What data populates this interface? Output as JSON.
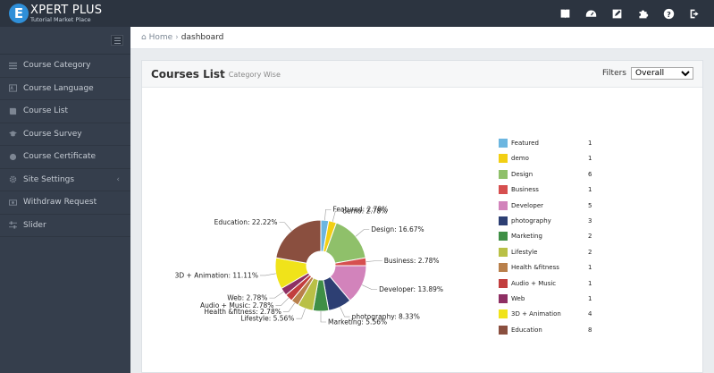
{
  "brand": {
    "mark": "E",
    "title": "XPERT PLUS",
    "subtitle": "Tutorial Market Place"
  },
  "top_icons": [
    "book-icon",
    "dashboard-icon",
    "edit-icon",
    "puzzle-icon",
    "help-icon",
    "logout-icon"
  ],
  "sidebar": {
    "items": [
      {
        "label": "Course Category",
        "icon": "list-icon"
      },
      {
        "label": "Course Language",
        "icon": "language-icon"
      },
      {
        "label": "Course List",
        "icon": "book-icon"
      },
      {
        "label": "Course Survey",
        "icon": "graduation-icon"
      },
      {
        "label": "Course Certificate",
        "icon": "certificate-icon"
      },
      {
        "label": "Site Settings",
        "icon": "gear-icon",
        "caret": "‹"
      },
      {
        "label": "Withdraw Request",
        "icon": "money-icon"
      },
      {
        "label": "Slider",
        "icon": "sliders-icon"
      }
    ]
  },
  "breadcrumb": {
    "home": "Home",
    "separator": "›",
    "current": "dashboard"
  },
  "panel": {
    "title": "Courses List",
    "subtitle": "Category Wise",
    "filters_label": "Filters",
    "filter_value": "Overall"
  },
  "chart_data": {
    "type": "pie",
    "donut": true,
    "legend_position": "right",
    "slices": [
      {
        "name": "Featured",
        "value": 1,
        "label": "Featured: 2.78%",
        "color": "#6cb6e0"
      },
      {
        "name": "demo",
        "value": 1,
        "label": "demo: 2.78%",
        "color": "#f2cf14"
      },
      {
        "name": "Design",
        "value": 6,
        "label": "Design: 16.67%",
        "color": "#8fc06a"
      },
      {
        "name": "Business",
        "value": 1,
        "label": "Business: 2.78%",
        "color": "#d64f4f"
      },
      {
        "name": "Developer",
        "value": 5,
        "label": "Developer: 13.89%",
        "color": "#d283bb"
      },
      {
        "name": "photography",
        "value": 3,
        "label": "photography: 8.33%",
        "color": "#2d3f73"
      },
      {
        "name": "Marketing",
        "value": 2,
        "label": "Marketing: 5.56%",
        "color": "#3f8f46"
      },
      {
        "name": "Lifestyle",
        "value": 2,
        "label": "Lifestyle: 5.56%",
        "color": "#b9c046"
      },
      {
        "name": "Health &fitness",
        "value": 1,
        "label": "Health &fitness: 2.78%",
        "color": "#b9804b"
      },
      {
        "name": "Audio + Music",
        "value": 1,
        "label": "Audio + Music: 2.78%",
        "color": "#c23e3e"
      },
      {
        "name": "Web",
        "value": 1,
        "label": "Web: 2.78%",
        "color": "#8e2f63"
      },
      {
        "name": "3D + Animation",
        "value": 4,
        "label": "3D + Animation: 11.11%",
        "color": "#f0e31a"
      },
      {
        "name": "Education",
        "value": 8,
        "label": "Education: 22.22%",
        "color": "#8a4f3f"
      }
    ]
  }
}
